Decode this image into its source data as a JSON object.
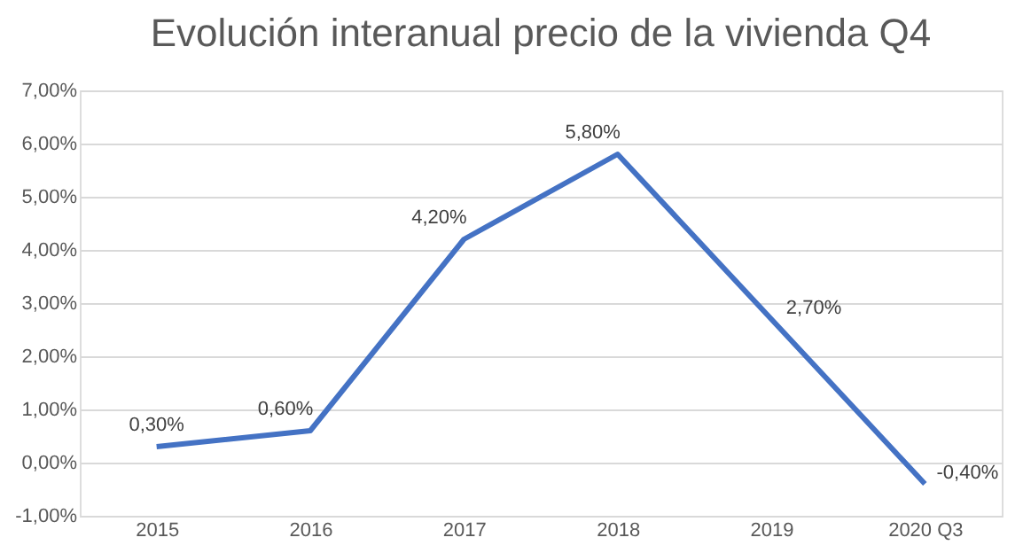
{
  "chart_data": {
    "type": "line",
    "title": "Evolución interanual precio de la vivienda Q4",
    "categories": [
      "2015",
      "2016",
      "2017",
      "2018",
      "2019",
      "2020 Q3"
    ],
    "series": [
      {
        "color": "#4472c4",
        "values": [
          0.3,
          0.6,
          4.2,
          5.8,
          2.7,
          -0.4
        ]
      }
    ],
    "value_labels": [
      "0,30%",
      "0,60%",
      "4,20%",
      "5,80%",
      "2,70%",
      "-0,40%"
    ],
    "ylim": [
      -1,
      7
    ],
    "yticks": [
      {
        "value": -1,
        "label": "-1,00%"
      },
      {
        "value": 0,
        "label": "0,00%"
      },
      {
        "value": 1,
        "label": "1,00%"
      },
      {
        "value": 2,
        "label": "2,00%"
      },
      {
        "value": 3,
        "label": "3,00%"
      },
      {
        "value": 4,
        "label": "4,00%"
      },
      {
        "value": 5,
        "label": "5,00%"
      },
      {
        "value": 6,
        "label": "6,00%"
      },
      {
        "value": 7,
        "label": "7,00%"
      }
    ],
    "grid": "y",
    "marker": "none",
    "line_style": "solid"
  }
}
